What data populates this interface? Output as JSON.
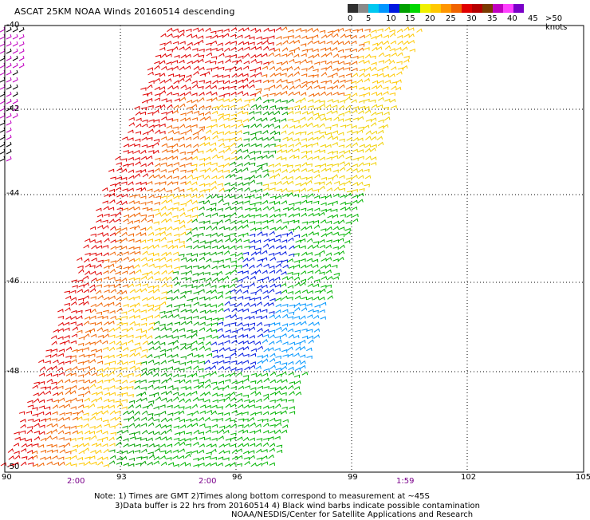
{
  "title": "ASCAT 25KM NOAA Winds 20160514 descending",
  "legend": {
    "labels": [
      "0",
      "5",
      "10",
      "15",
      "20",
      "25",
      "30",
      "35",
      "40",
      "45",
      ">50 knots"
    ],
    "colors": [
      "#2f2f2f",
      "#8a8a8a",
      "#00c8f0",
      "#0096ff",
      "#0018e0",
      "#00a000",
      "#00d800",
      "#f0f000",
      "#ffc800",
      "#ff9600",
      "#f06400",
      "#e00000",
      "#b40000",
      "#7a3a00",
      "#c000c0",
      "#ff40ff",
      "#7a00c8"
    ]
  },
  "lat_labels": [
    "-40",
    "-42",
    "-44",
    "-46",
    "-48",
    "-50"
  ],
  "lon_labels": [
    "90",
    "93",
    "96",
    "99",
    "102",
    "105"
  ],
  "time_labels": [
    "2:00",
    "2:00",
    "1:59"
  ],
  "note": {
    "line1": "Note: 1) Times are GMT 2)Times along bottom correspond to measurement at ~45S",
    "line2": "3)Data buffer is 22 hrs from 20160514 4) Black wind barbs indicate possible contamination",
    "line3": "NOAA/NESDIS/Center for Satellite Applications and Research"
  }
}
